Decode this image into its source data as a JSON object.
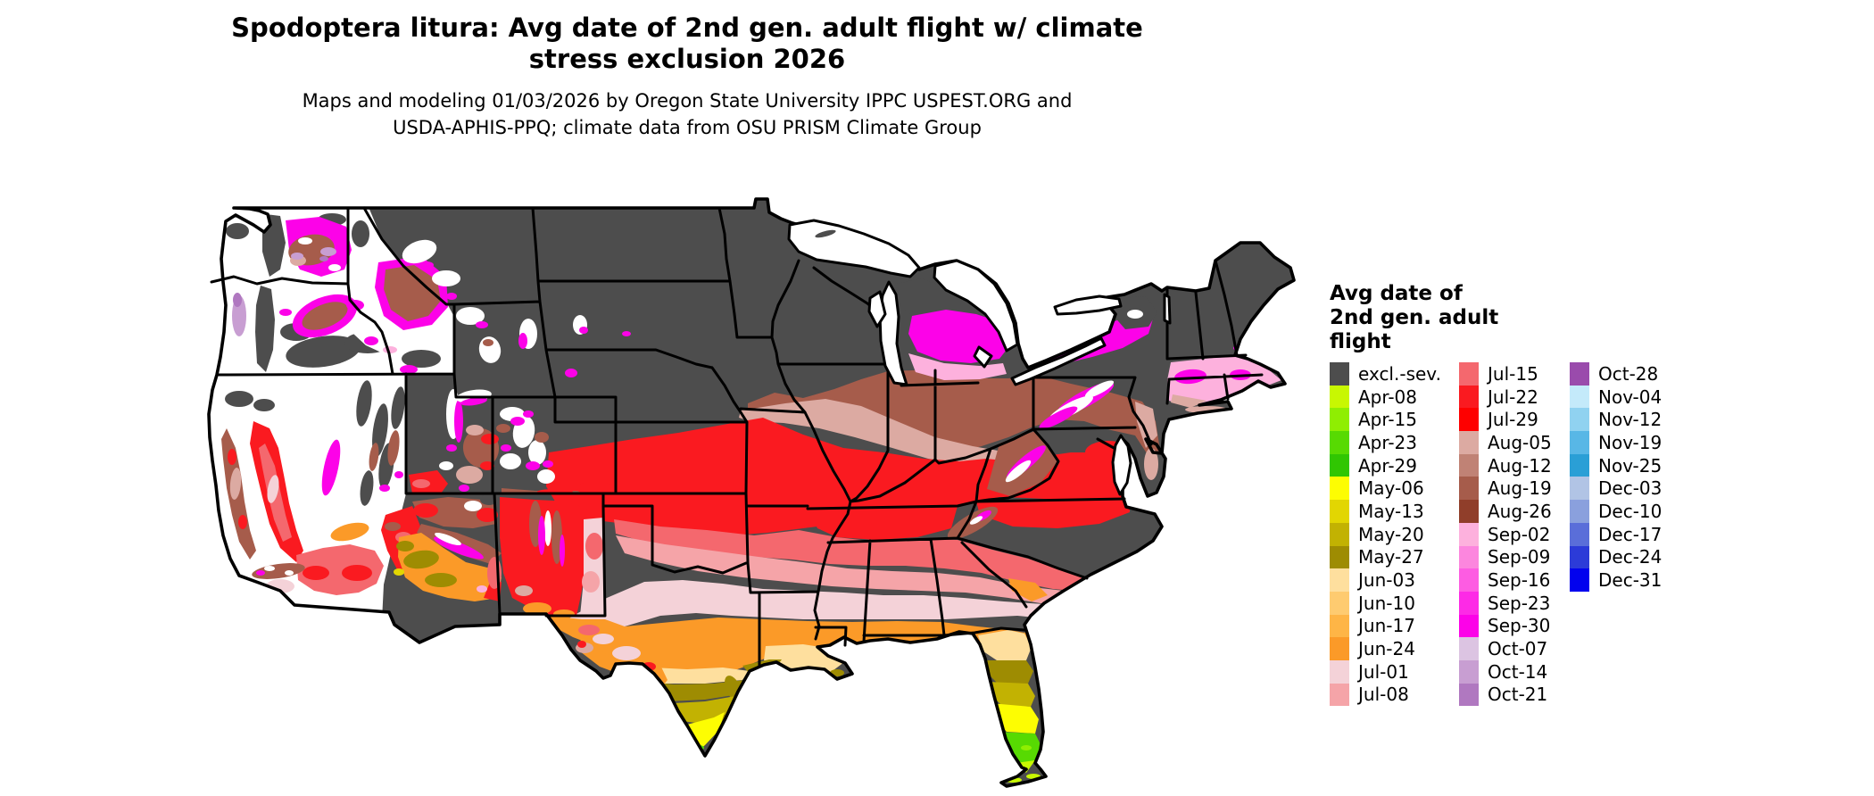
{
  "header": {
    "title": "Spodoptera litura: Avg date of 2nd gen. adult flight w/ climate\nstress exclusion 2026",
    "subtitle": "Maps and modeling 01/03/2026 by Oregon State University IPPC USPEST.ORG and\nUSDA-APHIS-PPQ; climate data from OSU PRISM Climate Group"
  },
  "legend": {
    "title": "Avg date of\n2nd gen. adult\nflight",
    "columns": [
      [
        {
          "label": "excl.-sev.",
          "color": "#4d4d4d"
        },
        {
          "label": "Apr-08",
          "color": "#c8f702"
        },
        {
          "label": "Apr-15",
          "color": "#8fee02"
        },
        {
          "label": "Apr-23",
          "color": "#57da02"
        },
        {
          "label": "Apr-29",
          "color": "#30c602"
        },
        {
          "label": "May-06",
          "color": "#fdfd02"
        },
        {
          "label": "May-13",
          "color": "#e2d602"
        },
        {
          "label": "May-20",
          "color": "#c2b202"
        },
        {
          "label": "May-27",
          "color": "#9e8c02"
        },
        {
          "label": "Jun-03",
          "color": "#fedf9e"
        },
        {
          "label": "Jun-10",
          "color": "#fecb70"
        },
        {
          "label": "Jun-17",
          "color": "#feb546"
        },
        {
          "label": "Jun-24",
          "color": "#fb9a28"
        },
        {
          "label": "Jul-01",
          "color": "#f4d2d8"
        },
        {
          "label": "Jul-08",
          "color": "#f5a4a8"
        }
      ],
      [
        {
          "label": "Jul-15",
          "color": "#f4686e"
        },
        {
          "label": "Jul-22",
          "color": "#fa1a20"
        },
        {
          "label": "Jul-29",
          "color": "#fe0000"
        },
        {
          "label": "Aug-05",
          "color": "#dcaaa2"
        },
        {
          "label": "Aug-12",
          "color": "#c08275"
        },
        {
          "label": "Aug-19",
          "color": "#a65c4b"
        },
        {
          "label": "Aug-26",
          "color": "#903e2a"
        },
        {
          "label": "Sep-02",
          "color": "#fdb1dd"
        },
        {
          "label": "Sep-09",
          "color": "#fc86de"
        },
        {
          "label": "Sep-16",
          "color": "#fd5ce2"
        },
        {
          "label": "Sep-23",
          "color": "#fd2ae6"
        },
        {
          "label": "Sep-30",
          "color": "#fc02e8"
        },
        {
          "label": "Oct-07",
          "color": "#dcc4e2"
        },
        {
          "label": "Oct-14",
          "color": "#c89ed2"
        },
        {
          "label": "Oct-21",
          "color": "#b078c0"
        }
      ],
      [
        {
          "label": "Oct-28",
          "color": "#9a4bac"
        },
        {
          "label": "Nov-04",
          "color": "#c4eafa"
        },
        {
          "label": "Nov-12",
          "color": "#90d2f0"
        },
        {
          "label": "Nov-19",
          "color": "#58b7e6"
        },
        {
          "label": "Nov-25",
          "color": "#2a9fd6"
        },
        {
          "label": "Dec-03",
          "color": "#b1c4e5"
        },
        {
          "label": "Dec-10",
          "color": "#8aa0dd"
        },
        {
          "label": "Dec-17",
          "color": "#5a6ed9"
        },
        {
          "label": "Dec-24",
          "color": "#2c3bd8"
        },
        {
          "label": "Dec-31",
          "color": "#0202ee"
        }
      ]
    ]
  },
  "map": {
    "background_color": "#ffffff",
    "border_color": "#000000",
    "excluded_severe_color": "#4d4d4d"
  }
}
